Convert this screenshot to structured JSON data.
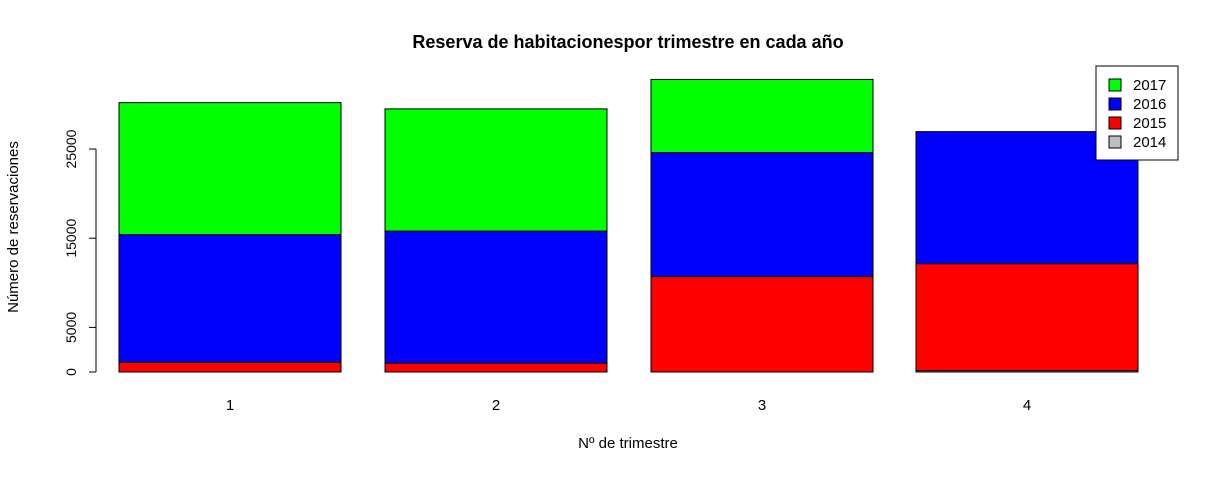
{
  "chart_data": {
    "type": "bar",
    "stacked": true,
    "title": "Reserva de habitacionespor trimestre en cada año",
    "xlabel": "Nº de trimestre",
    "ylabel": "Número de reservaciones",
    "categories": [
      "1",
      "2",
      "3",
      "4"
    ],
    "series": [
      {
        "name": "2014",
        "color": "#BEBEBE",
        "values": [
          0,
          0,
          0,
          150
        ]
      },
      {
        "name": "2015",
        "color": "#FF0000",
        "values": [
          1100,
          1000,
          10700,
          12000
        ]
      },
      {
        "name": "2016",
        "color": "#0000FF",
        "values": [
          14300,
          14800,
          13900,
          14800
        ]
      },
      {
        "name": "2017",
        "color": "#00FF00",
        "values": [
          14800,
          13700,
          8200,
          0
        ]
      }
    ],
    "legend_order": [
      "2017",
      "2016",
      "2015",
      "2014"
    ],
    "y_ticks": [
      0,
      5000,
      15000,
      25000
    ],
    "ylim": [
      0,
      33000
    ],
    "grid": false,
    "legend_position": "top-right"
  }
}
